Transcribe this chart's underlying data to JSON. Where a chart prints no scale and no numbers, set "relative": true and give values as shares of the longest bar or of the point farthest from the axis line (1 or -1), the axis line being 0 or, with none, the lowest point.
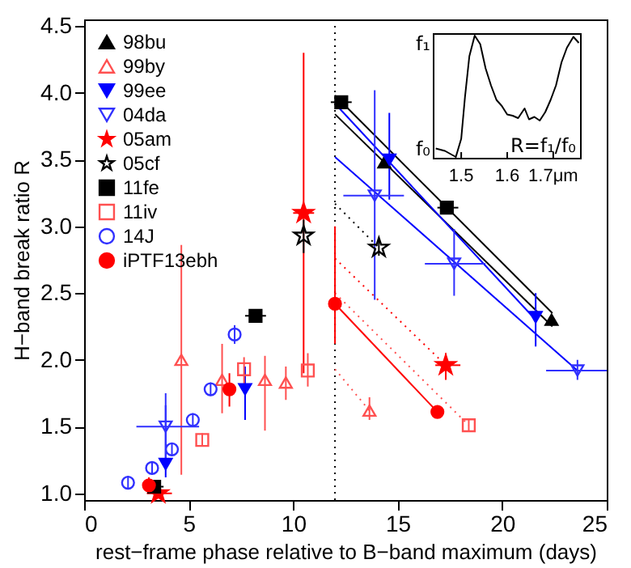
{
  "chart_data": [
    {
      "type": "scatter",
      "xlabel": "rest−frame phase relative to B−band maximum (days)",
      "ylabel": "H−band break ratio R",
      "xlim": [
        0,
        25
      ],
      "ylim": [
        0.95,
        4.55
      ],
      "xticks": [
        0,
        5,
        10,
        15,
        20,
        25
      ],
      "yticks": [
        {
          "value": 1,
          "label": "1.0"
        },
        1.5,
        {
          "value": 2,
          "label": "2.0"
        },
        2.5,
        {
          "value": 3,
          "label": "3.0"
        },
        3.5,
        {
          "value": 4,
          "label": "4.0"
        },
        4.5
      ],
      "legend": "top left",
      "ref_lines": [
        {
          "axis": "x",
          "value": 12,
          "color": "#000000",
          "line_style": "dotted"
        }
      ],
      "series": [
        {
          "name": "98bu",
          "color": "#000000",
          "marker": "triangle",
          "x": [
            14.36,
            22.36
          ],
          "values": [
            3.48,
            2.3
          ]
        },
        {
          "name": "99by",
          "color": "#ff5050",
          "marker": "triangle-open",
          "x": [
            4.65,
            6.6,
            8.65,
            9.65,
            13.65
          ],
          "values": [
            2.0,
            1.85,
            1.85,
            1.83,
            1.62
          ],
          "errors": [
            [
              1.14,
              2.86
            ],
            [
              1.6,
              2.12
            ],
            [
              1.47,
              2.03
            ],
            [
              1.7,
              1.95
            ],
            [
              1.55,
              1.72
            ]
          ]
        },
        {
          "name": "99ee",
          "color": "#0000ff",
          "marker": "triangle-down",
          "x": [
            3.9,
            7.7,
            14.6,
            21.6
          ],
          "values": [
            1.22,
            1.78,
            3.5,
            2.32
          ],
          "errors": [
            [
              1.12,
              1.66
            ],
            [
              1.55,
              1.95
            ],
            [
              3.2,
              3.85
            ],
            [
              2.1,
              2.5
            ]
          ]
        },
        {
          "name": "04da",
          "color": "#3030ff",
          "marker": "triangle-down-open",
          "x": [
            3.9,
            13.9,
            17.7,
            23.6
          ],
          "values": [
            1.5,
            3.23,
            2.72,
            1.92
          ],
          "errors": [
            [
              1.2,
              1.75
            ],
            [
              2.45,
              4.02
            ],
            [
              2.48,
              2.98
            ],
            [
              1.85,
              2.0
            ]
          ],
          "xerrors": [
            [
              2.5,
              5.5
            ],
            [
              12.4,
              15.3
            ],
            [
              16.3,
              19.2
            ],
            [
              22.1,
              25
            ]
          ]
        },
        {
          "name": "05am",
          "color": "#ff0000",
          "marker": "star",
          "x": [
            3.55,
            10.5,
            17.3
          ],
          "values": [
            1.0,
            3.1,
            1.96
          ],
          "errors": [
            null,
            [
              1.9,
              4.3
            ],
            [
              1.85,
              2.05
            ]
          ],
          "xerrors": [
            [
              3.0,
              4.2
            ],
            [
              10.0,
              11.0
            ],
            [
              16.8,
              18.0
            ]
          ]
        },
        {
          "name": "05cf",
          "color": "#000000",
          "marker": "star-open",
          "x": [
            10.5,
            14.1
          ],
          "values": [
            2.93,
            2.84
          ],
          "errors": [
            [
              2.8,
              3.05
            ],
            [
              2.78,
              2.9
            ]
          ]
        },
        {
          "name": "11fe",
          "color": "#000000",
          "marker": "square",
          "x": [
            3.35,
            8.2,
            12.3,
            17.35
          ],
          "values": [
            1.05,
            2.33,
            3.93,
            3.14
          ],
          "xerrors": [
            [
              2.9,
              3.8
            ],
            [
              7.7,
              8.7
            ],
            [
              11.8,
              12.8
            ],
            [
              16.9,
              17.9
            ]
          ]
        },
        {
          "name": "11iv",
          "color": "#ff5050",
          "marker": "square-open",
          "x": [
            5.65,
            7.65,
            10.7,
            18.4
          ],
          "values": [
            1.4,
            1.93,
            1.92,
            1.51
          ],
          "errors": [
            [
              1.35,
              1.45
            ],
            [
              1.82,
              2.02
            ],
            [
              1.8,
              2.05
            ],
            [
              1.47,
              1.55
            ]
          ]
        },
        {
          "name": "14J",
          "color": "#3030ff",
          "marker": "circle-open",
          "x": [
            2.1,
            3.25,
            4.2,
            5.2,
            6.05,
            7.2
          ],
          "values": [
            1.08,
            1.19,
            1.33,
            1.55,
            1.78,
            2.19
          ],
          "errors": [
            [
              1.03,
              1.13
            ],
            [
              1.14,
              1.24
            ],
            [
              1.28,
              1.38
            ],
            [
              1.5,
              1.6
            ],
            [
              1.73,
              1.83
            ],
            [
              2.12,
              2.26
            ]
          ]
        },
        {
          "name": "iPTF13ebh",
          "color": "#ff0000",
          "marker": "circle",
          "x": [
            3.1,
            6.95,
            12.0,
            16.9
          ],
          "values": [
            1.06,
            1.78,
            2.42,
            1.61
          ],
          "errors": [
            [
              1.0,
              1.12
            ],
            [
              1.65,
              1.9
            ],
            [
              2.12,
              3.0
            ],
            null
          ]
        },
        {
          "type": "line",
          "color": "#000000",
          "line_style": "solid",
          "x": [
            12.0,
            22.4
          ],
          "values": [
            3.98,
            2.35
          ]
        },
        {
          "type": "line",
          "color": "#000000",
          "line_style": "solid",
          "x": [
            12.0,
            22.4
          ],
          "values": [
            3.84,
            2.25
          ]
        },
        {
          "type": "line",
          "color": "#0000ff",
          "line_style": "solid",
          "x": [
            12.0,
            21.6
          ],
          "values": [
            3.92,
            2.3
          ]
        },
        {
          "type": "line",
          "color": "#0000ff",
          "line_style": "solid",
          "x": [
            12.0,
            23.6
          ],
          "values": [
            3.52,
            1.92
          ]
        },
        {
          "type": "line",
          "color": "#000000",
          "line_style": "dotted",
          "x": [
            12.0,
            14.1
          ],
          "values": [
            3.17,
            2.84
          ]
        },
        {
          "type": "line",
          "color": "#ff0000",
          "line_style": "solid",
          "x": [
            12.0,
            16.9
          ],
          "values": [
            2.42,
            1.61
          ]
        },
        {
          "type": "line",
          "color": "#ff0000",
          "line_style": "dotted",
          "x": [
            12.0,
            17.3
          ],
          "values": [
            2.76,
            1.96
          ]
        },
        {
          "type": "line",
          "color": "#ff5050",
          "line_style": "dotted",
          "x": [
            12.0,
            18.4
          ],
          "values": [
            2.5,
            1.51
          ]
        },
        {
          "type": "line",
          "color": "#ff5050",
          "line_style": "dotted",
          "x": [
            12.0,
            13.65
          ],
          "values": [
            1.93,
            1.62
          ]
        }
      ]
    },
    {
      "type": "line",
      "relative": true,
      "xlim": [
        1.44,
        1.76
      ],
      "xticks": [
        1.5,
        1.6,
        {
          "value": 1.7,
          "label": "1.7μm"
        }
      ],
      "annotations": [
        "f₁",
        "f₀",
        "R=f₁/f₀"
      ],
      "series": [
        {
          "color": "#000000",
          "x": [
            1.4446,
            1.4647,
            1.4883,
            1.5,
            1.5081,
            1.5177,
            1.5293,
            1.5413,
            1.553,
            1.5647,
            1.5766,
            1.5883,
            1.6,
            1.6119,
            1.6237,
            1.6378,
            1.6473,
            1.659,
            1.6707,
            1.6827,
            1.6943,
            1.706,
            1.718,
            1.7297,
            1.7438,
            1.7555
          ],
          "values": [
            0.07,
            0.05,
            0.0,
            0.15,
            0.49,
            0.83,
            1.0,
            0.93,
            0.73,
            0.59,
            0.47,
            0.42,
            0.35,
            0.34,
            0.32,
            0.4,
            0.31,
            0.33,
            0.3,
            0.37,
            0.47,
            0.59,
            0.78,
            0.9,
            0.99,
            0.94
          ]
        }
      ]
    }
  ]
}
